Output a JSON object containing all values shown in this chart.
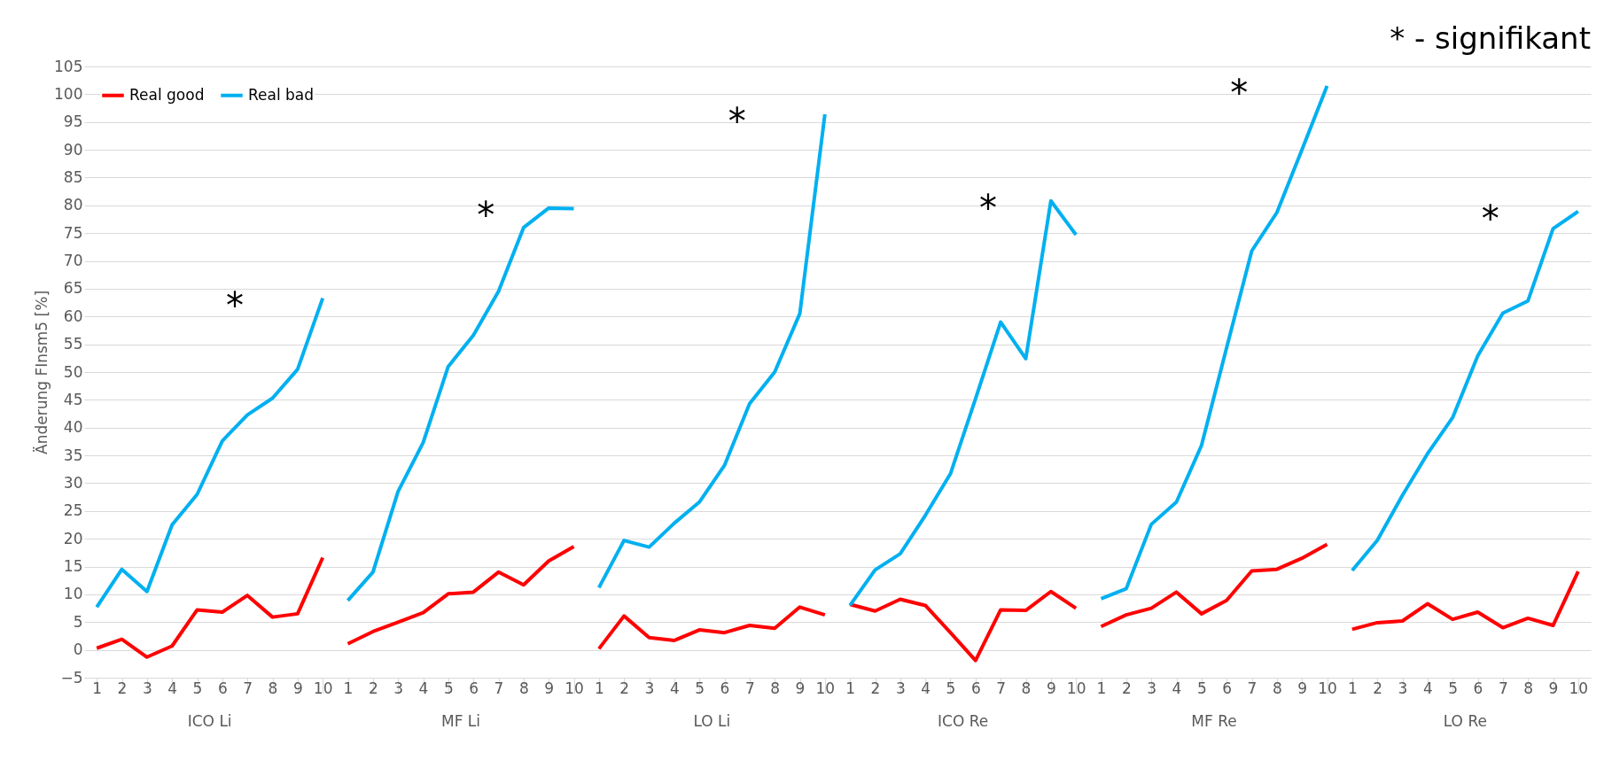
{
  "chart_data": {
    "type": "line",
    "title": "* - signifikant",
    "ylabel": "Änderung FInsm5 [%]",
    "categories": [
      "1",
      "2",
      "3",
      "4",
      "5",
      "6",
      "7",
      "8",
      "9",
      "10",
      "1",
      "2",
      "3",
      "4",
      "5",
      "6",
      "7",
      "8",
      "9",
      "10",
      "1",
      "2",
      "3",
      "4",
      "5",
      "6",
      "7",
      "8",
      "9",
      "10",
      "1",
      "2",
      "3",
      "4",
      "5",
      "6",
      "7",
      "8",
      "9",
      "10",
      "1",
      "2",
      "3",
      "4",
      "5",
      "6",
      "7",
      "8",
      "9",
      "10",
      "1",
      "2",
      "3",
      "4",
      "5",
      "6",
      "7",
      "8",
      "9",
      "10"
    ],
    "series": [
      {
        "name": "Real good",
        "color": "#ff0000",
        "values": [
          0.3,
          1.9,
          -1.3,
          0.7,
          7.2,
          6.8,
          9.8,
          5.9,
          6.5,
          16.6,
          1.1,
          3.3,
          5,
          6.7,
          10.1,
          10.4,
          14,
          11.7,
          16,
          18.6,
          0.2,
          6.1,
          2.2,
          1.7,
          3.6,
          3.1,
          4.4,
          3.9,
          7.7,
          6.3,
          8.2,
          7,
          9.1,
          8,
          3.1,
          -1.9,
          7.2,
          7.1,
          10.5,
          7.5,
          4.2,
          6.3,
          7.5,
          10.4,
          6.5,
          8.9,
          14.2,
          14.5,
          16.5,
          19,
          3.7,
          4.9,
          5.2,
          8.3,
          5.5,
          6.8,
          4,
          5.7,
          4.4,
          14.1
        ]
      },
      {
        "name": "Real bad",
        "color": "#00b0f0",
        "values": [
          7.7,
          14.5,
          10.5,
          22.5,
          28,
          37.6,
          42.3,
          45.3,
          50.5,
          63.3,
          8.9,
          14,
          28.5,
          37.3,
          51,
          56.6,
          64.5,
          76,
          79.5,
          79.4,
          11.2,
          19.7,
          18.5,
          22.8,
          26.6,
          33.2,
          44.3,
          50,
          60.5,
          96.4,
          8,
          14.4,
          17.3,
          24.2,
          31.7,
          45.2,
          59,
          52.4,
          80.8,
          74.7,
          9.2,
          11,
          22.6,
          26.6,
          36.8,
          54.4,
          71.8,
          78.7,
          90,
          101.5,
          14.3,
          19.7,
          27.8,
          35.3,
          41.8,
          52.9,
          60.6,
          62.8,
          75.8,
          78.9
        ]
      }
    ],
    "ylim": [
      -5,
      105
    ],
    "yticks": [
      -5,
      0,
      5,
      10,
      15,
      20,
      25,
      30,
      35,
      40,
      45,
      50,
      55,
      60,
      65,
      70,
      75,
      80,
      85,
      90,
      95,
      100,
      105
    ],
    "grid": "y",
    "legend": "top left",
    "line_style": "solid",
    "marker": "none",
    "annotations": [
      "ICO Li",
      "MF Li",
      "LO Li",
      "ICO Re",
      "MF Re",
      "LO Re",
      "*",
      "*",
      "*",
      "*",
      "*",
      "*"
    ]
  }
}
